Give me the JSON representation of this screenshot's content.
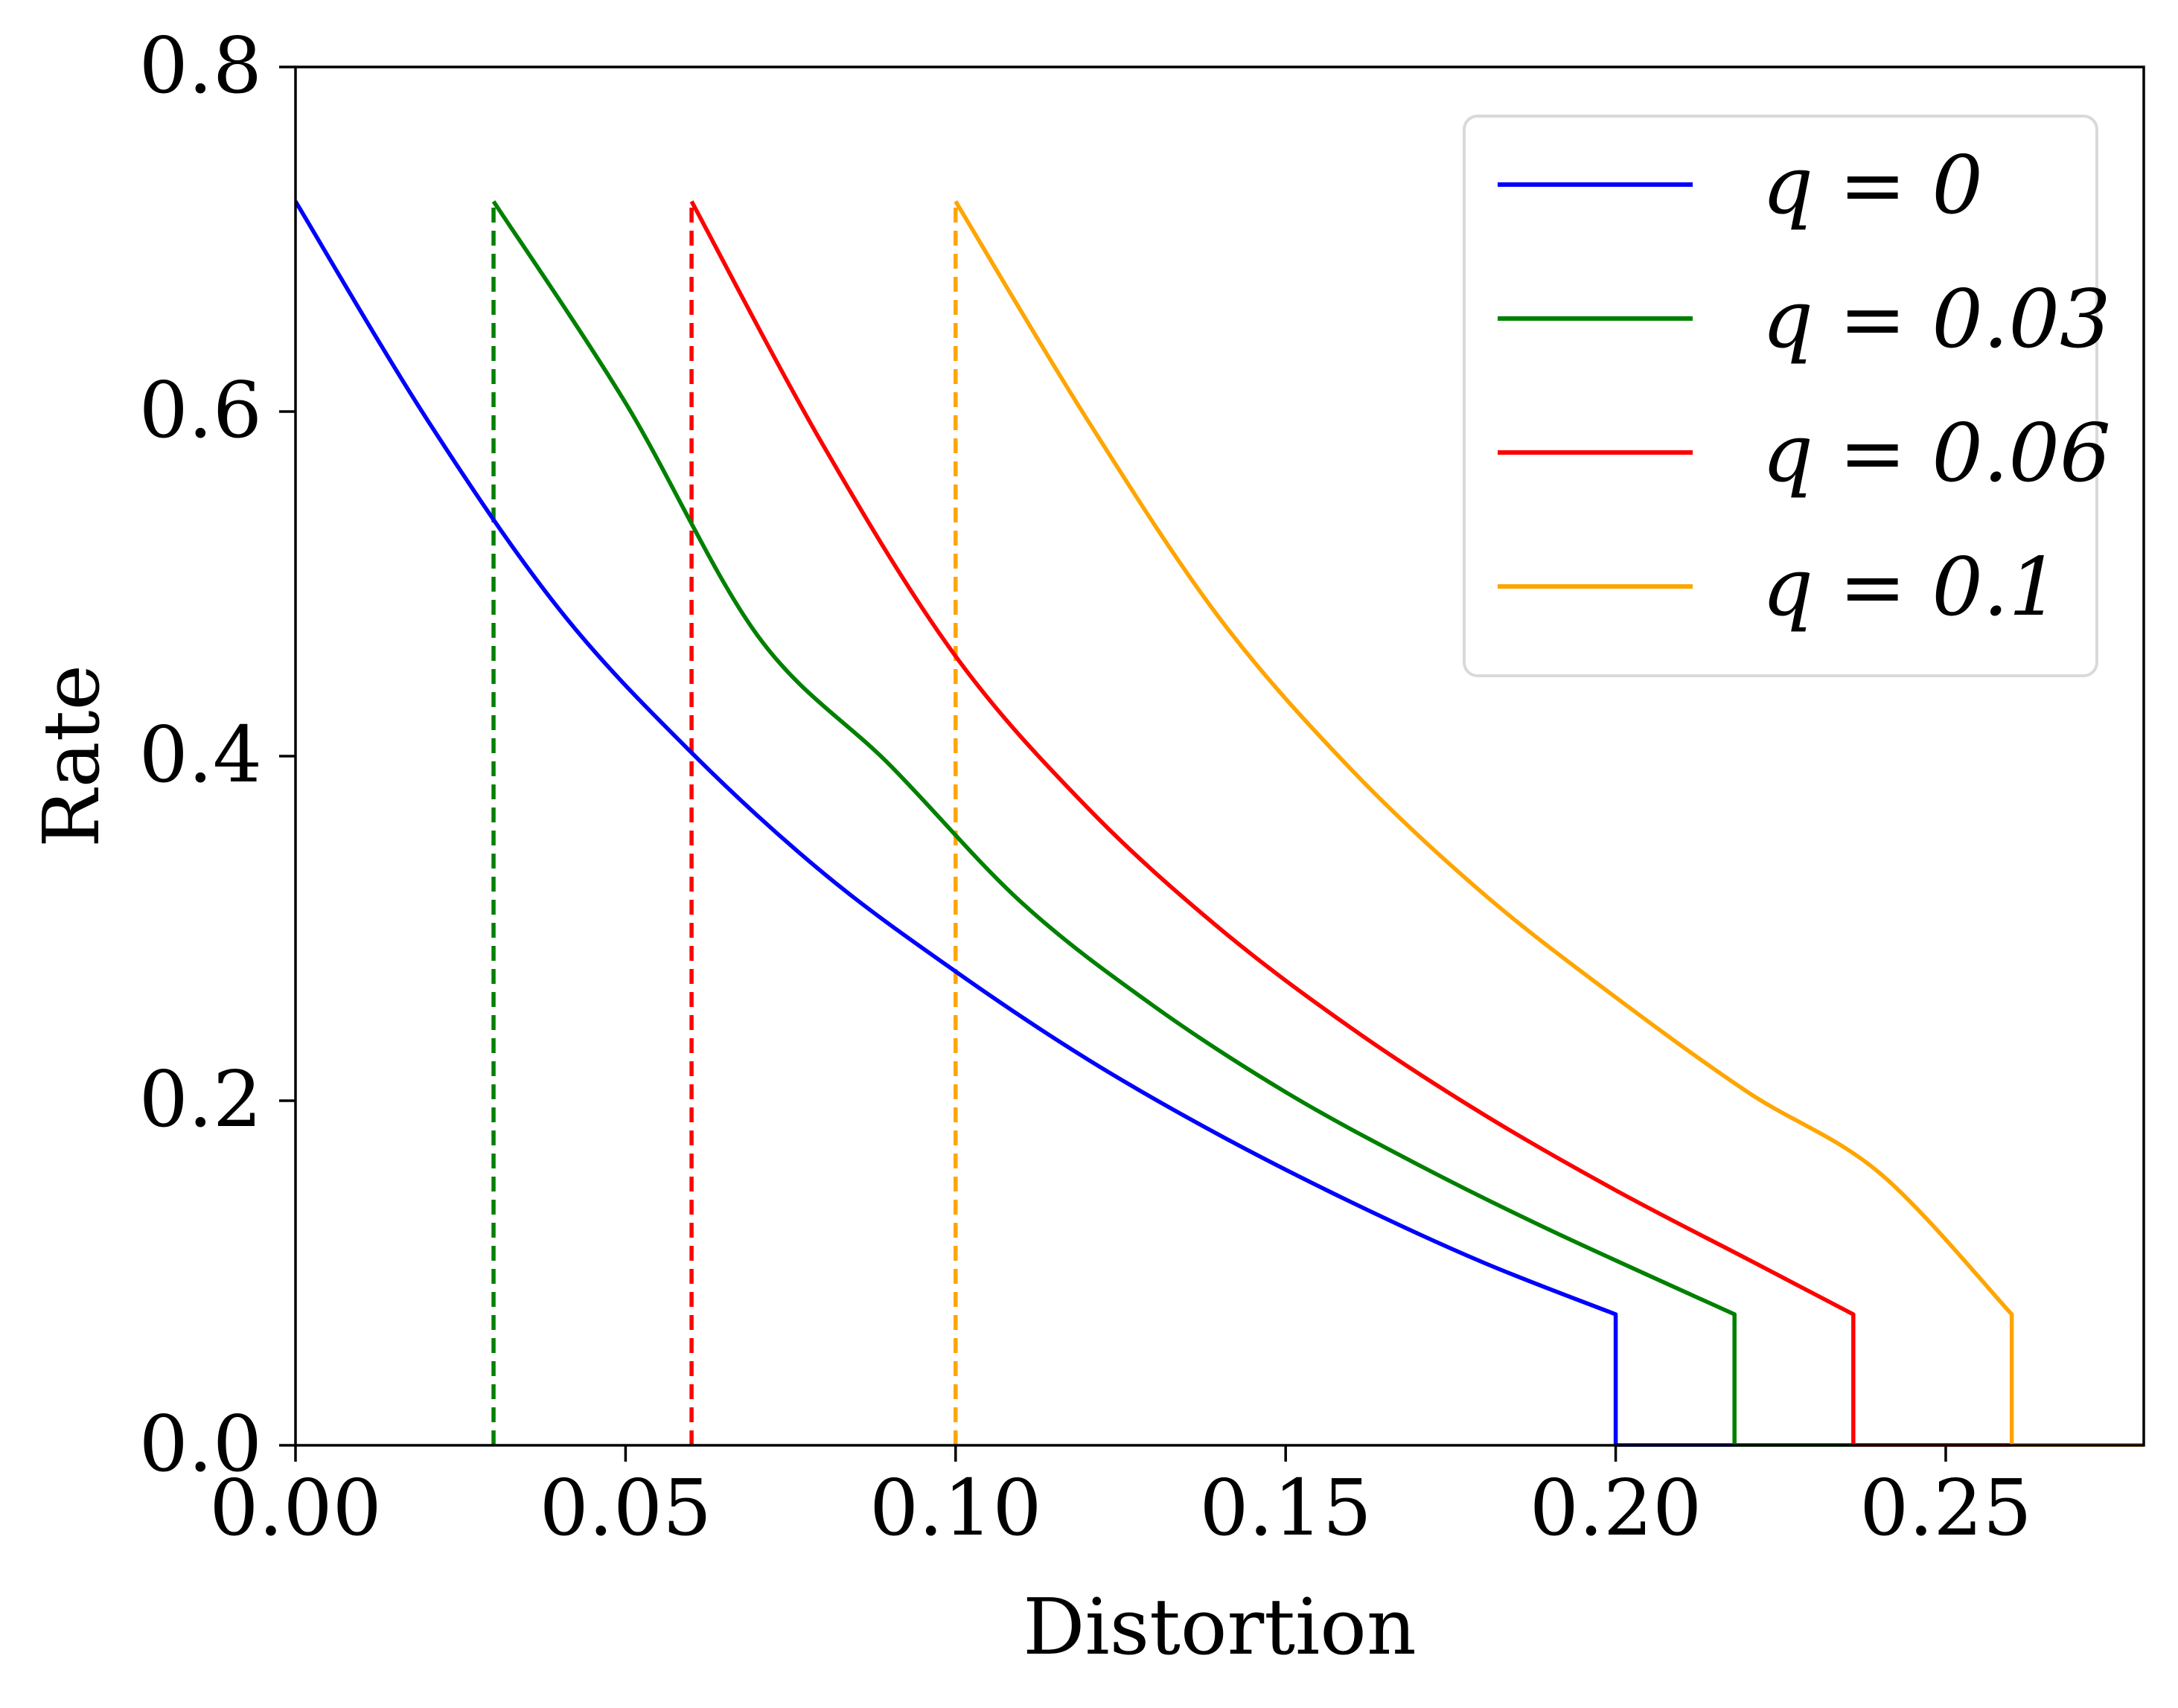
{
  "chart_data": {
    "type": "line",
    "title": "",
    "xlabel": "Distortion",
    "ylabel": "Rate",
    "xlim": [
      0.0,
      0.28
    ],
    "ylim": [
      0.0,
      0.8
    ],
    "xticks": [
      0.0,
      0.05,
      0.1,
      0.15,
      0.2,
      0.25
    ],
    "xtick_labels": [
      "0.00",
      "0.05",
      "0.10",
      "0.15",
      "0.20",
      "0.25"
    ],
    "yticks": [
      0.0,
      0.2,
      0.4,
      0.6,
      0.8
    ],
    "ytick_labels": [
      "0.0",
      "0.2",
      "0.4",
      "0.6",
      "0.8"
    ],
    "grid": false,
    "legend_position": "top-right",
    "series": [
      {
        "name": "q = 0",
        "q": 0,
        "color": "#0000ff",
        "x": [
          0.0,
          0.02,
          0.04,
          0.06,
          0.08,
          0.1,
          0.12,
          0.14,
          0.16,
          0.18,
          0.2,
          0.2,
          0.28
        ],
        "y": [
          0.722,
          0.595,
          0.485,
          0.402,
          0.332,
          0.275,
          0.224,
          0.18,
          0.141,
          0.106,
          0.076,
          0.0,
          0.0
        ]
      },
      {
        "name": "q = 0.03",
        "q": 0.03,
        "color": "#008000",
        "x": [
          0.03,
          0.05,
          0.07,
          0.09,
          0.11,
          0.13,
          0.15,
          0.17,
          0.19,
          0.218,
          0.218,
          0.28
        ],
        "y": [
          0.722,
          0.605,
          0.47,
          0.395,
          0.315,
          0.255,
          0.205,
          0.163,
          0.125,
          0.076,
          0.0,
          0.0
        ]
      },
      {
        "name": "q = 0.06",
        "q": 0.06,
        "color": "#ff0000",
        "x": [
          0.06,
          0.08,
          0.1,
          0.12,
          0.14,
          0.16,
          0.18,
          0.2,
          0.22,
          0.236,
          0.236,
          0.28
        ],
        "y": [
          0.722,
          0.58,
          0.458,
          0.37,
          0.3,
          0.242,
          0.192,
          0.148,
          0.108,
          0.076,
          0.0,
          0.0
        ]
      },
      {
        "name": "q = 0.1",
        "q": 0.1,
        "color": "#ffa500",
        "x": [
          0.1,
          0.12,
          0.14,
          0.16,
          0.18,
          0.2,
          0.22,
          0.24,
          0.26,
          0.26,
          0.28
        ],
        "y": [
          0.722,
          0.595,
          0.48,
          0.392,
          0.32,
          0.26,
          0.205,
          0.158,
          0.076,
          0.0,
          0.0
        ]
      }
    ],
    "vertical_lines": [
      {
        "x": 0.03,
        "y_top": 0.722,
        "color": "#008000",
        "style": "dashed"
      },
      {
        "x": 0.06,
        "y_top": 0.722,
        "color": "#ff0000",
        "style": "dashed"
      },
      {
        "x": 0.1,
        "y_top": 0.722,
        "color": "#ffa500",
        "style": "dashed"
      }
    ],
    "legend": [
      {
        "label": "q = 0",
        "color": "#0000ff"
      },
      {
        "label": "q = 0.03",
        "color": "#008000"
      },
      {
        "label": "q = 0.06",
        "color": "#ff0000"
      },
      {
        "label": "q = 0.1",
        "color": "#ffa500"
      }
    ]
  }
}
